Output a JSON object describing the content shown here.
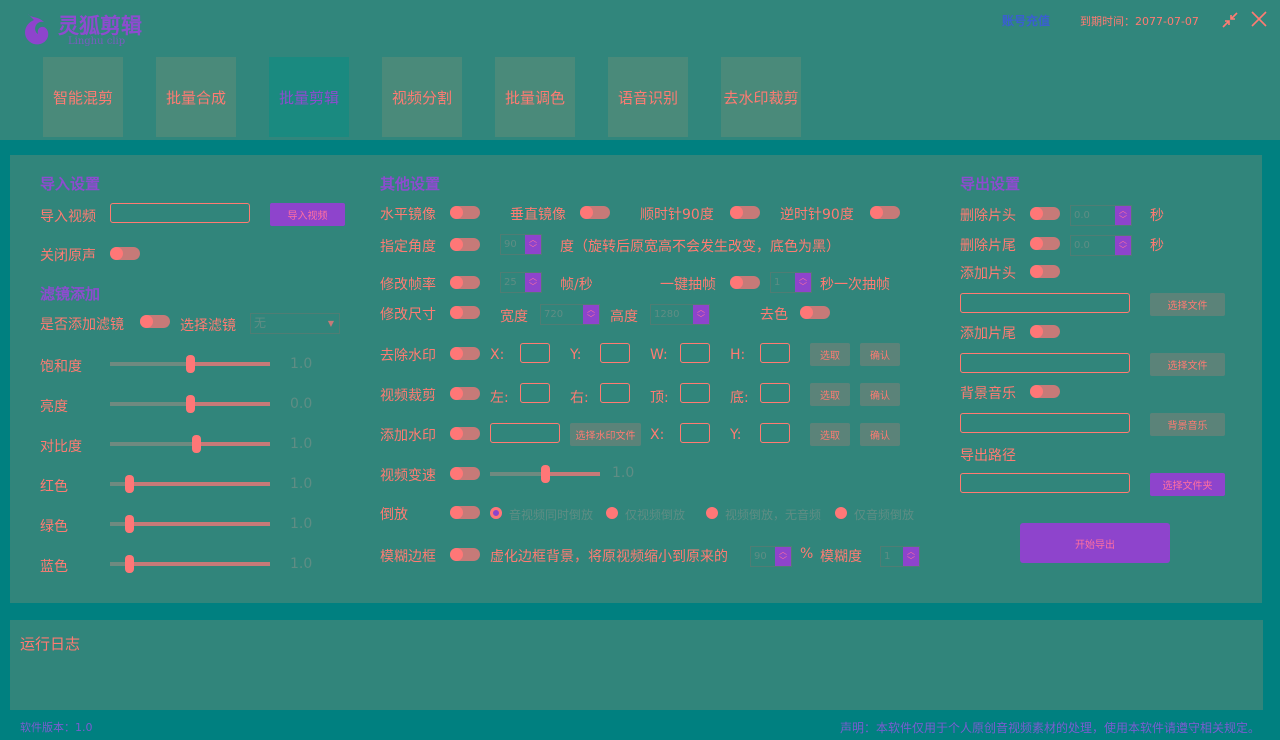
{
  "app": {
    "logo_text": "灵狐剪辑",
    "logo_sub": "Linghu clip",
    "recharge": "账号充值",
    "expire": "到期时间：2077-07-07"
  },
  "tabs": [
    {
      "label": "智能混剪"
    },
    {
      "label": "批量合成"
    },
    {
      "label": "批量剪辑",
      "active": true
    },
    {
      "label": "视频分割"
    },
    {
      "label": "批量调色"
    },
    {
      "label": "语音识别"
    },
    {
      "label": "去水印裁剪"
    }
  ],
  "import": {
    "title": "导入设置",
    "video_label": "导入视频",
    "video_value": "",
    "import_btn": "导入视频",
    "mute_label": "关闭原声"
  },
  "filter": {
    "title": "滤镜添加",
    "enable_label": "是否添加滤镜",
    "select_label": "选择滤镜",
    "selected": "无",
    "sliders": [
      {
        "label": "饱和度",
        "value": "1.0",
        "position": 50
      },
      {
        "label": "亮度",
        "value": "0.0",
        "position": 50
      },
      {
        "label": "对比度",
        "value": "1.0",
        "position": 54
      },
      {
        "label": "红色",
        "value": "1.0",
        "position": 12
      },
      {
        "label": "绿色",
        "value": "1.0",
        "position": 12
      },
      {
        "label": "蓝色",
        "value": "1.0",
        "position": 12
      }
    ]
  },
  "other": {
    "title": "其他设置",
    "hflip": "水平镜像",
    "vflip": "垂直镜像",
    "cw90": "顺时针90度",
    "ccw90": "逆时针90度",
    "angle_label": "指定角度",
    "angle_value": "90",
    "angle_note": "度（旋转后原宽高不会发生改变，底色为黑）",
    "fps_label": "修改帧率",
    "fps_value": "25",
    "fps_unit": "帧/秒",
    "drop_label": "一键抽帧",
    "drop_value": "1",
    "drop_unit": "秒一次抽帧",
    "size_label": "修改尺寸",
    "width_label": "宽度",
    "width_value": "720",
    "height_label": "高度",
    "height_value": "1280",
    "decolor": "去色",
    "wm_remove": "去除水印",
    "x": "X:",
    "y": "Y:",
    "w": "W:",
    "h": "H:",
    "pick": "选取",
    "confirm": "确认",
    "crop": "视频裁剪",
    "left": "左:",
    "right": "右:",
    "top": "顶:",
    "bottom": "底:",
    "wm_add": "添加水印",
    "wm_file_btn": "选择水印文件",
    "speed": "视频变速",
    "speed_value": "1.0",
    "speed_position": 50,
    "reverse": "倒放",
    "reverse_options": [
      "音视频同时倒放",
      "仅视频倒放",
      "视频倒放，无音频",
      "仅音频倒放"
    ],
    "reverse_selected": 0,
    "blur": "模糊边框",
    "blur_text": "虚化边框背景，将原视频缩小到原来的",
    "blur_scale": "90",
    "percent": "%",
    "blur_deg_label": "模糊度",
    "blur_deg": "1"
  },
  "export": {
    "title": "导出设置",
    "cut_head": "删除片头",
    "cut_head_value": "0.0",
    "cut_tail": "删除片尾",
    "cut_tail_value": "0.0",
    "sec": "秒",
    "add_head": "添加片头",
    "add_tail": "添加片尾",
    "choose_file": "选择文件",
    "bgm": "背景音乐",
    "bgm_btn": "背景音乐",
    "path": "导出路径",
    "choose_folder": "选择文件夹",
    "start": "开始导出"
  },
  "log": {
    "title": "运行日志"
  },
  "footer": {
    "version": "软件版本：1.0",
    "notice": "声明：本软件仅用于个人原创音视频素材的处理，使用本软件请遵守相关规定。"
  },
  "colors": {
    "teal": "#008080",
    "panel": "#31857b",
    "accent": "#ff7b72",
    "purple": "#8e44cc"
  }
}
